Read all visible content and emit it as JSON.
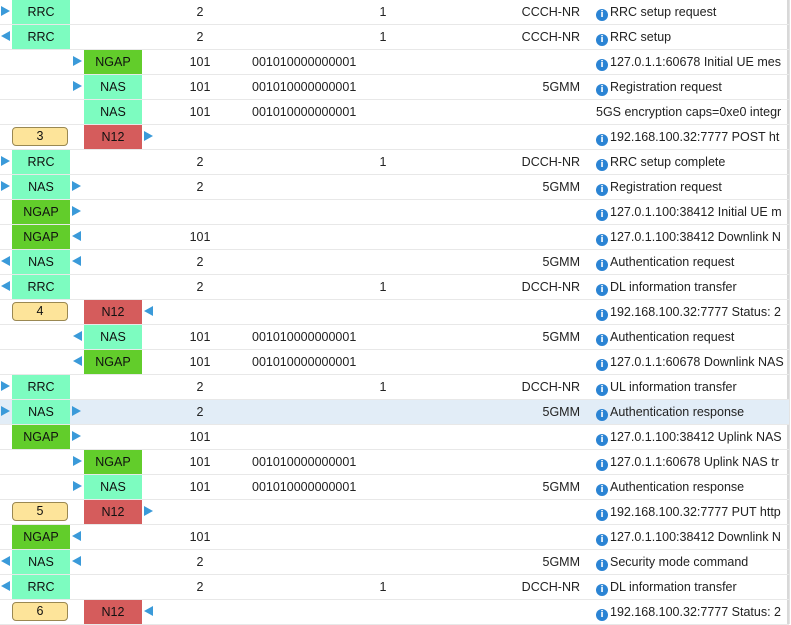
{
  "rows": [
    {
      "badge": "RRC",
      "badge_pos": 0,
      "arrows": [
        {
          "side": "left",
          "dir": "r"
        }
      ],
      "ue": "2",
      "ran": "",
      "ch": "1",
      "proto": "CCCH-NR",
      "info": true,
      "msg": "RRC setup request"
    },
    {
      "badge": "RRC",
      "badge_pos": 0,
      "arrows": [
        {
          "side": "left",
          "dir": "l"
        }
      ],
      "ue": "2",
      "ran": "",
      "ch": "1",
      "proto": "CCCH-NR",
      "info": true,
      "msg": "RRC setup"
    },
    {
      "badge": "NGAP",
      "badge_pos": 1,
      "arrows": [
        {
          "side": "left",
          "dir": "r"
        }
      ],
      "ue": "101",
      "ran": "001010000000001",
      "ch": "",
      "proto": "",
      "info": true,
      "msg": "127.0.1.1:60678 Initial UE mes"
    },
    {
      "badge": "NAS",
      "badge_pos": 1,
      "arrows": [
        {
          "side": "left",
          "dir": "r"
        }
      ],
      "ue": "101",
      "ran": "001010000000001",
      "ch": "",
      "proto": "5GMM",
      "info": true,
      "msg": "Registration request"
    },
    {
      "badge": "NAS",
      "badge_pos": 1,
      "arrows": [],
      "ue": "101",
      "ran": "001010000000001",
      "ch": "",
      "proto": "",
      "info": false,
      "msg": "5GS encryption caps=0xe0 integr"
    },
    {
      "index": "3",
      "badge": "N12",
      "badge_pos": 1,
      "arrows": [
        {
          "side": "right",
          "dir": "r"
        }
      ],
      "ue": "",
      "ran": "",
      "ch": "",
      "proto": "",
      "info": true,
      "msg": "192.168.100.32:7777 POST ht"
    },
    {
      "badge": "RRC",
      "badge_pos": 0,
      "arrows": [
        {
          "side": "left",
          "dir": "r"
        }
      ],
      "ue": "2",
      "ran": "",
      "ch": "1",
      "proto": "DCCH-NR",
      "info": true,
      "msg": "RRC setup complete"
    },
    {
      "badge": "NAS",
      "badge_pos": 0,
      "arrows": [
        {
          "side": "left",
          "dir": "r"
        },
        {
          "side": "right",
          "dir": "r"
        }
      ],
      "ue": "2",
      "ran": "",
      "ch": "",
      "proto": "5GMM",
      "info": true,
      "msg": "Registration request"
    },
    {
      "badge": "NGAP",
      "badge_pos": 0,
      "arrows": [
        {
          "side": "right",
          "dir": "r"
        }
      ],
      "ue": "",
      "ran": "",
      "ch": "",
      "proto": "",
      "info": true,
      "msg": "127.0.1.100:38412 Initial UE m"
    },
    {
      "badge": "NGAP",
      "badge_pos": 0,
      "arrows": [
        {
          "side": "right",
          "dir": "l"
        }
      ],
      "ue": "101",
      "ran": "",
      "ch": "",
      "proto": "",
      "info": true,
      "msg": "127.0.1.100:38412 Downlink N"
    },
    {
      "badge": "NAS",
      "badge_pos": 0,
      "arrows": [
        {
          "side": "left",
          "dir": "l"
        },
        {
          "side": "right",
          "dir": "l"
        }
      ],
      "ue": "2",
      "ran": "",
      "ch": "",
      "proto": "5GMM",
      "info": true,
      "msg": "Authentication request"
    },
    {
      "badge": "RRC",
      "badge_pos": 0,
      "arrows": [
        {
          "side": "left",
          "dir": "l"
        }
      ],
      "ue": "2",
      "ran": "",
      "ch": "1",
      "proto": "DCCH-NR",
      "info": true,
      "msg": "DL information transfer"
    },
    {
      "index": "4",
      "badge": "N12",
      "badge_pos": 1,
      "arrows": [
        {
          "side": "right",
          "dir": "l"
        }
      ],
      "ue": "",
      "ran": "",
      "ch": "",
      "proto": "",
      "info": true,
      "msg": "192.168.100.32:7777 Status: 2"
    },
    {
      "badge": "NAS",
      "badge_pos": 1,
      "arrows": [
        {
          "side": "left",
          "dir": "l"
        }
      ],
      "ue": "101",
      "ran": "001010000000001",
      "ch": "",
      "proto": "5GMM",
      "info": true,
      "msg": "Authentication request"
    },
    {
      "badge": "NGAP",
      "badge_pos": 1,
      "arrows": [
        {
          "side": "left",
          "dir": "l"
        }
      ],
      "ue": "101",
      "ran": "001010000000001",
      "ch": "",
      "proto": "",
      "info": true,
      "msg": "127.0.1.1:60678 Downlink NAS"
    },
    {
      "badge": "RRC",
      "badge_pos": 0,
      "arrows": [
        {
          "side": "left",
          "dir": "r"
        }
      ],
      "ue": "2",
      "ran": "",
      "ch": "1",
      "proto": "DCCH-NR",
      "info": true,
      "msg": "UL information transfer"
    },
    {
      "badge": "NAS",
      "badge_pos": 0,
      "selected": true,
      "arrows": [
        {
          "side": "left",
          "dir": "r"
        },
        {
          "side": "right",
          "dir": "r"
        }
      ],
      "ue": "2",
      "ran": "",
      "ch": "",
      "proto": "5GMM",
      "info": true,
      "msg": "Authentication response"
    },
    {
      "badge": "NGAP",
      "badge_pos": 0,
      "arrows": [
        {
          "side": "right",
          "dir": "r"
        }
      ],
      "ue": "101",
      "ran": "",
      "ch": "",
      "proto": "",
      "info": true,
      "msg": "127.0.1.100:38412 Uplink NAS"
    },
    {
      "badge": "NGAP",
      "badge_pos": 1,
      "arrows": [
        {
          "side": "left",
          "dir": "r"
        }
      ],
      "ue": "101",
      "ran": "001010000000001",
      "ch": "",
      "proto": "",
      "info": true,
      "msg": "127.0.1.1:60678 Uplink NAS tr"
    },
    {
      "badge": "NAS",
      "badge_pos": 1,
      "arrows": [
        {
          "side": "left",
          "dir": "r"
        }
      ],
      "ue": "101",
      "ran": "001010000000001",
      "ch": "",
      "proto": "5GMM",
      "info": true,
      "msg": "Authentication response"
    },
    {
      "index": "5",
      "badge": "N12",
      "badge_pos": 1,
      "arrows": [
        {
          "side": "right",
          "dir": "r"
        }
      ],
      "ue": "",
      "ran": "",
      "ch": "",
      "proto": "",
      "info": true,
      "msg": "192.168.100.32:7777 PUT http"
    },
    {
      "badge": "NGAP",
      "badge_pos": 0,
      "arrows": [
        {
          "side": "right",
          "dir": "l"
        }
      ],
      "ue": "101",
      "ran": "",
      "ch": "",
      "proto": "",
      "info": true,
      "msg": "127.0.1.100:38412 Downlink N"
    },
    {
      "badge": "NAS",
      "badge_pos": 0,
      "arrows": [
        {
          "side": "left",
          "dir": "l"
        },
        {
          "side": "right",
          "dir": "l"
        }
      ],
      "ue": "2",
      "ran": "",
      "ch": "",
      "proto": "5GMM",
      "info": true,
      "msg": "Security mode command"
    },
    {
      "badge": "RRC",
      "badge_pos": 0,
      "arrows": [
        {
          "side": "left",
          "dir": "l"
        }
      ],
      "ue": "2",
      "ran": "",
      "ch": "1",
      "proto": "DCCH-NR",
      "info": true,
      "msg": "DL information transfer"
    },
    {
      "index": "6",
      "badge": "N12",
      "badge_pos": 1,
      "arrows": [
        {
          "side": "right",
          "dir": "l"
        }
      ],
      "ue": "",
      "ran": "",
      "ch": "",
      "proto": "",
      "info": true,
      "msg": "192.168.100.32:7777 Status: 2"
    }
  ],
  "colors": {
    "rrc": "#7dfcc0",
    "nas": "#7dfcc0",
    "ngap": "#62cd2b",
    "n12": "#d55c5c",
    "arrow": "#3a9ad9",
    "index_bg": "#fde49a",
    "selected": "#e2edf7"
  },
  "icons": {
    "info": "info-circle-icon",
    "arrow": "direction-arrow-icon"
  }
}
